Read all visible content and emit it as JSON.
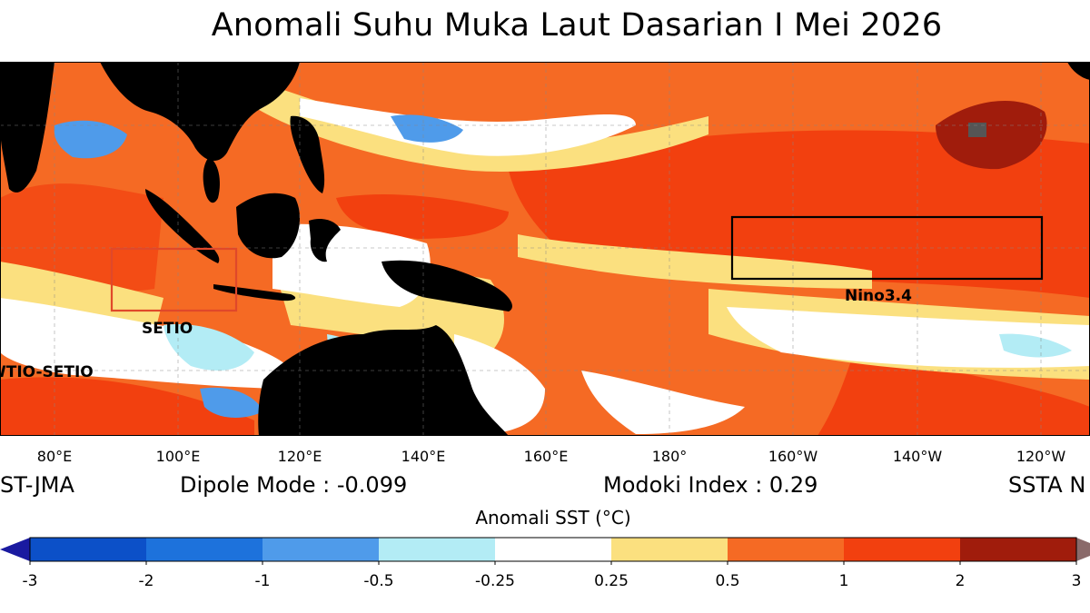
{
  "title": "Anomali Suhu Muka Laut Dasarian I Mei 2026",
  "map": {
    "lon_labels": [
      "80°E",
      "100°E",
      "120°E",
      "140°E",
      "160°E",
      "180°",
      "160°W",
      "140°W",
      "120°W"
    ],
    "regions": {
      "setio": "SETIO",
      "wtio": "WTIO-SETIO",
      "nino": "Nino3.4"
    },
    "colors": {
      "land": "#000000",
      "anom_1_2": "#f2400f",
      "anom_05_1": "#f56a24",
      "anom_025_05": "#fbe07f",
      "neutral": "#ffffff",
      "neg_025_05": "#b3ecf5",
      "neg_05_1": "#4f9bea",
      "setio_box": "#e0482a",
      "nino_box": "#000000"
    }
  },
  "info": {
    "source": "ST-JMA",
    "dipole": "Dipole Mode : -0.099",
    "modoki": "Modoki Index : 0.29",
    "ssta": "SSTA N"
  },
  "colorbar": {
    "label": "Anomali SST (°C)",
    "ticks": [
      "-3",
      "-2",
      "-1",
      "-0.5",
      "-0.25",
      "0.25",
      "0.5",
      "1",
      "2",
      "3"
    ],
    "colors": [
      "#0c50c8",
      "#1d72dc",
      "#4f9bea",
      "#b3ecf5",
      "#ffffff",
      "#fbe07f",
      "#f56a24",
      "#f2400f",
      "#a01c0c"
    ],
    "under_color": "#1a1aa0",
    "over_color": "#8a6a6a"
  }
}
